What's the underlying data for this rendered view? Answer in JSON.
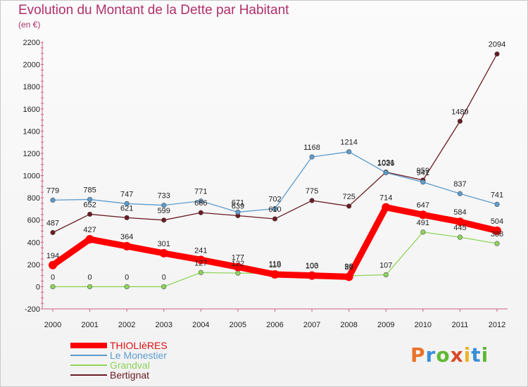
{
  "chart_data": {
    "type": "line",
    "title": "Evolution du Montant de la Dette par Habitant",
    "subtitle": "(en €)",
    "x": [
      "2000",
      "2001",
      "2002",
      "2003",
      "2004",
      "2005",
      "2006",
      "2007",
      "2008",
      "2009",
      "2010",
      "2011",
      "2012"
    ],
    "ylim": [
      -200,
      2200
    ],
    "yticks": [
      -200,
      0,
      200,
      400,
      600,
      800,
      1000,
      1200,
      1400,
      1600,
      1800,
      2000,
      2200
    ],
    "grid": false,
    "legend_position": "bottom-left",
    "series": [
      {
        "name": "Bertignat",
        "color": "#6b1a22",
        "values": [
          487,
          652,
          621,
          599,
          666,
          639,
          610,
          775,
          725,
          1031,
          959,
          1489,
          2094
        ]
      },
      {
        "name": "Le Monestier",
        "color": "#5b9ccf",
        "values": [
          779,
          785,
          747,
          733,
          771,
          671,
          702,
          1168,
          1214,
          1026,
          941,
          837,
          741
        ]
      },
      {
        "name": "Grandval",
        "color": "#8ed45a",
        "values": [
          0,
          0,
          0,
          0,
          127,
          122,
          119,
          103,
          98,
          107,
          491,
          445,
          388
        ]
      },
      {
        "name": "THIOLIèRES",
        "color": "#ff0000",
        "values": [
          194,
          427,
          364,
          301,
          241,
          177,
          110,
          100,
          89,
          714,
          647,
          584,
          504
        ]
      }
    ]
  },
  "legend": {
    "items": [
      {
        "label": "THIOLIèRES",
        "color": "#ff0000"
      },
      {
        "label": "Le Monestier",
        "color": "#5b9ccf"
      },
      {
        "label": "Grandval",
        "color": "#8ed45a"
      },
      {
        "label": "Bertignat",
        "color": "#6b1a22"
      }
    ]
  },
  "logo": {
    "letters": [
      "P",
      "r",
      "o",
      "x",
      "i",
      "t",
      "i"
    ],
    "colors": [
      "#e8732a",
      "#3b8fd9",
      "#5fb833",
      "#d94a2a",
      "#e8b42a",
      "#3b8fd9",
      "#5fb833"
    ]
  }
}
